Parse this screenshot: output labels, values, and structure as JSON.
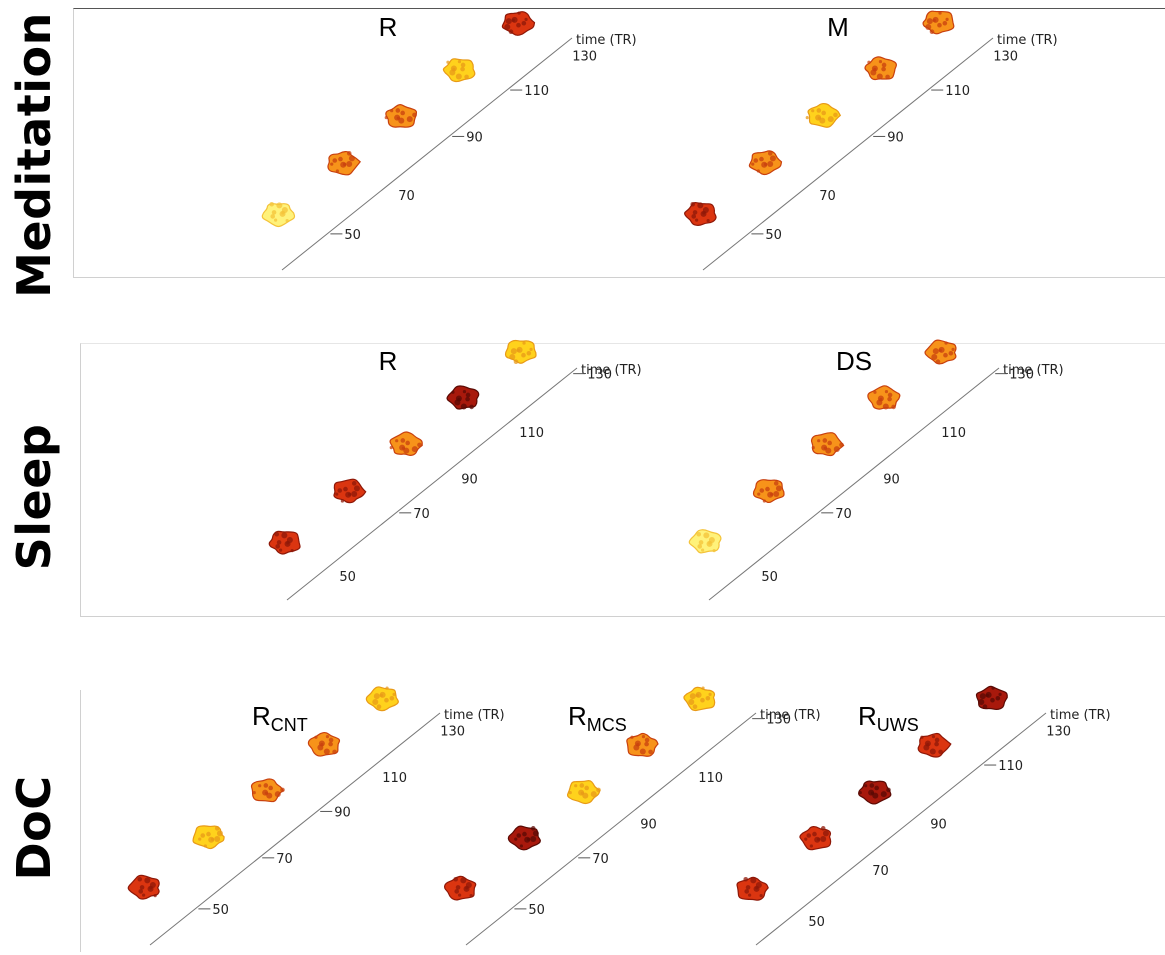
{
  "colors": {
    "pale": "#fff27a",
    "yellow": "#ffd21c",
    "orange": "#f7931a",
    "red": "#db3510",
    "dark": "#a8190c"
  },
  "rows": [
    {
      "label": "Meditation",
      "panels": [
        {
          "title": "R",
          "subscript": "",
          "axis_label": "time (TR)",
          "ticks": [
            "50",
            "70",
            "90",
            "110",
            "130"
          ],
          "brain_colors": [
            "pale",
            "orange",
            "orange",
            "yellow",
            "red"
          ]
        },
        {
          "title": "M",
          "subscript": "",
          "axis_label": "time (TR)",
          "ticks": [
            "50",
            "70",
            "90",
            "110",
            "130"
          ],
          "brain_colors": [
            "red",
            "orange",
            "yellow",
            "orange",
            "orange"
          ]
        }
      ]
    },
    {
      "label": "Sleep",
      "panels": [
        {
          "title": "R",
          "subscript": "",
          "axis_label": "time (TR)",
          "ticks": [
            "50",
            "70",
            "90",
            "110",
            "130"
          ],
          "brain_colors": [
            "red",
            "red",
            "orange",
            "dark",
            "yellow"
          ]
        },
        {
          "title": "DS",
          "subscript": "",
          "axis_label": "time (TR)",
          "ticks": [
            "50",
            "70",
            "90",
            "110",
            "130"
          ],
          "brain_colors": [
            "pale",
            "orange",
            "orange",
            "orange",
            "orange"
          ]
        }
      ]
    },
    {
      "label": "DoC",
      "panels": [
        {
          "title": "R",
          "subscript": "CNT",
          "axis_label": "time (TR)",
          "ticks": [
            "50",
            "70",
            "90",
            "110",
            "130"
          ],
          "brain_colors": [
            "red",
            "yellow",
            "orange",
            "orange",
            "yellow"
          ]
        },
        {
          "title": "R",
          "subscript": "MCS",
          "axis_label": "time (TR)",
          "ticks": [
            "50",
            "70",
            "90",
            "110",
            "130"
          ],
          "brain_colors": [
            "red",
            "dark",
            "yellow",
            "orange",
            "yellow"
          ]
        },
        {
          "title": "R",
          "subscript": "UWS",
          "axis_label": "time (TR)",
          "ticks": [
            "50",
            "70",
            "90",
            "110",
            "130"
          ],
          "brain_colors": [
            "red",
            "red",
            "dark",
            "red",
            "dark"
          ]
        }
      ]
    }
  ]
}
